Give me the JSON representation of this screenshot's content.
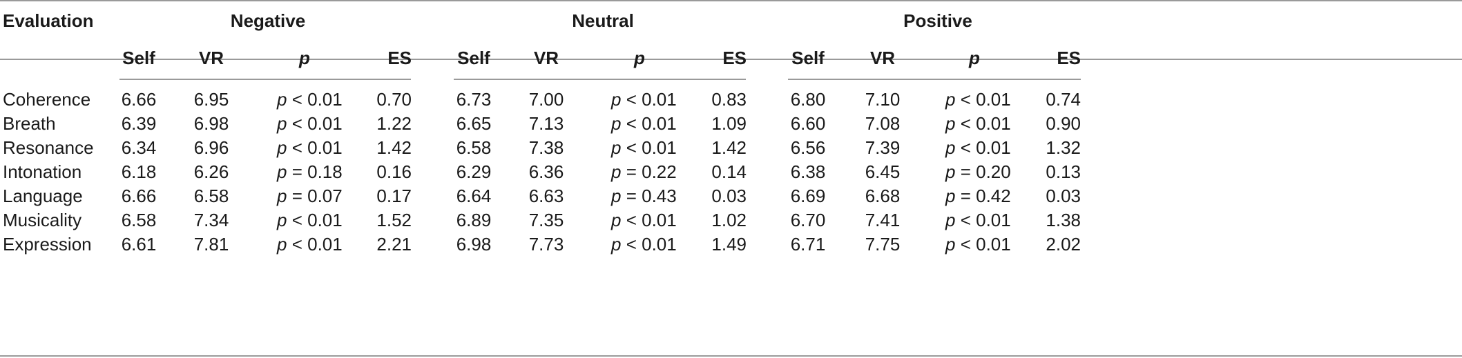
{
  "header": {
    "first_col": "Evaluation",
    "groups": [
      "Negative",
      "Neutral",
      "Positive"
    ],
    "subcols": [
      "Self",
      "VR",
      "p",
      "ES"
    ]
  },
  "rows": [
    {
      "label": "Coherence",
      "values": [
        [
          "6.66",
          "6.95",
          "< 0.01",
          "0.70"
        ],
        [
          "6.73",
          "7.00",
          "< 0.01",
          "0.83"
        ],
        [
          "6.80",
          "7.10",
          "< 0.01",
          "0.74"
        ]
      ]
    },
    {
      "label": "Breath",
      "values": [
        [
          "6.39",
          "6.98",
          "< 0.01",
          "1.22"
        ],
        [
          "6.65",
          "7.13",
          "< 0.01",
          "1.09"
        ],
        [
          "6.60",
          "7.08",
          "< 0.01",
          "0.90"
        ]
      ]
    },
    {
      "label": "Resonance",
      "values": [
        [
          "6.34",
          "6.96",
          "< 0.01",
          "1.42"
        ],
        [
          "6.58",
          "7.38",
          "< 0.01",
          "1.42"
        ],
        [
          "6.56",
          "7.39",
          "< 0.01",
          "1.32"
        ]
      ]
    },
    {
      "label": "Intonation",
      "values": [
        [
          "6.18",
          "6.26",
          "= 0.18",
          "0.16"
        ],
        [
          "6.29",
          "6.36",
          "= 0.22",
          "0.14"
        ],
        [
          "6.38",
          "6.45",
          "= 0.20",
          "0.13"
        ]
      ]
    },
    {
      "label": "Language",
      "values": [
        [
          "6.66",
          "6.58",
          "= 0.07",
          "0.17"
        ],
        [
          "6.64",
          "6.63",
          "= 0.43",
          "0.03"
        ],
        [
          "6.69",
          "6.68",
          "= 0.42",
          "0.03"
        ]
      ]
    },
    {
      "label": "Musicality",
      "values": [
        [
          "6.58",
          "7.34",
          "< 0.01",
          "1.52"
        ],
        [
          "6.89",
          "7.35",
          "< 0.01",
          "1.02"
        ],
        [
          "6.70",
          "7.41",
          "< 0.01",
          "1.38"
        ]
      ]
    },
    {
      "label": "Expression",
      "values": [
        [
          "6.61",
          "7.81",
          "< 0.01",
          "2.21"
        ],
        [
          "6.98",
          "7.73",
          "< 0.01",
          "1.49"
        ],
        [
          "6.71",
          "7.75",
          "< 0.01",
          "2.02"
        ]
      ]
    }
  ]
}
